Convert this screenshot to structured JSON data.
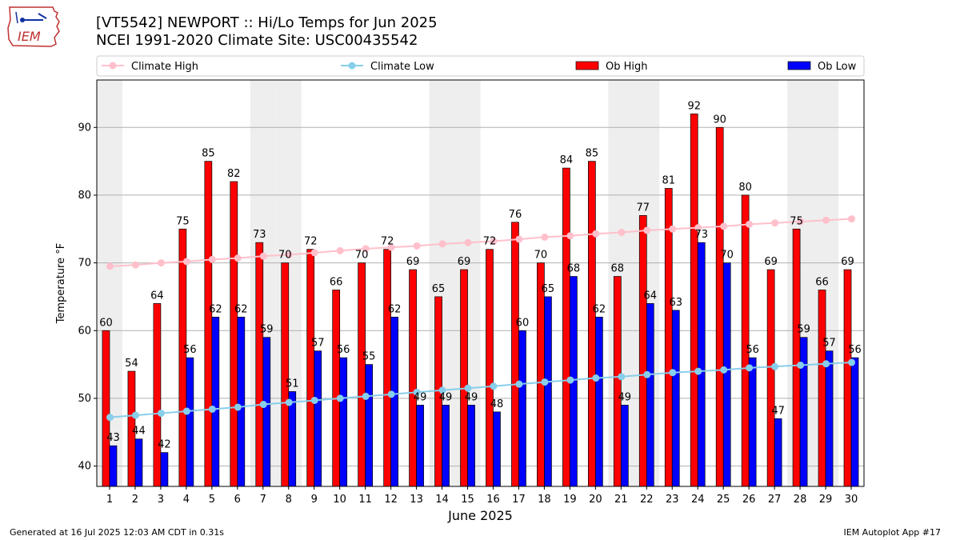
{
  "header": {
    "title_line1": "[VT5542] NEWPORT :: Hi/Lo Temps for Jun 2025",
    "title_line2": "NCEI 1991-2020 Climate Site: USC00435542",
    "logo_text": "IEM"
  },
  "footer": {
    "generated": "Generated at 16 Jul 2025 12:03 AM CDT in 0.31s",
    "app": "IEM Autoplot App #17"
  },
  "colors": {
    "ob_high": "#ff0000",
    "ob_low": "#0000ff",
    "climate_high": "#ffc0cb",
    "climate_low": "#87ceeb",
    "weekend_band": "#eeeeee"
  },
  "chart_data": {
    "type": "bar",
    "xlabel": "June 2025",
    "ylabel": "Temperature °F",
    "ylim": [
      37,
      97
    ],
    "yticks": [
      40,
      50,
      60,
      70,
      80,
      90
    ],
    "grid": "horizontal",
    "legend_position": "top",
    "categories": [
      "1",
      "2",
      "3",
      "4",
      "5",
      "6",
      "7",
      "8",
      "9",
      "10",
      "11",
      "12",
      "13",
      "14",
      "15",
      "16",
      "17",
      "18",
      "19",
      "20",
      "21",
      "22",
      "23",
      "24",
      "25",
      "26",
      "27",
      "28",
      "29",
      "30"
    ],
    "shaded_days": [
      1,
      7,
      8,
      14,
      15,
      21,
      22,
      28,
      29
    ],
    "series": [
      {
        "name": "Climate High",
        "kind": "line",
        "values": [
          69.5,
          69.7,
          70.0,
          70.2,
          70.5,
          70.7,
          71.0,
          71.2,
          71.5,
          71.8,
          72.1,
          72.3,
          72.5,
          72.8,
          73.0,
          73.2,
          73.5,
          73.8,
          74.0,
          74.3,
          74.5,
          74.8,
          75.0,
          75.2,
          75.4,
          75.7,
          75.9,
          76.1,
          76.3,
          76.5
        ]
      },
      {
        "name": "Climate Low",
        "kind": "line",
        "values": [
          47.2,
          47.5,
          47.8,
          48.1,
          48.4,
          48.7,
          49.1,
          49.4,
          49.7,
          50.0,
          50.3,
          50.6,
          50.9,
          51.2,
          51.5,
          51.8,
          52.1,
          52.4,
          52.7,
          53.0,
          53.2,
          53.5,
          53.8,
          54.0,
          54.2,
          54.5,
          54.7,
          54.9,
          55.1,
          55.3
        ]
      },
      {
        "name": "Ob High",
        "kind": "bar",
        "values": [
          60,
          54,
          64,
          75,
          85,
          82,
          73,
          70,
          72,
          66,
          70,
          72,
          69,
          65,
          69,
          72,
          76,
          70,
          84,
          85,
          68,
          77,
          81,
          92,
          90,
          80,
          69,
          75,
          66,
          69
        ]
      },
      {
        "name": "Ob Low",
        "kind": "bar",
        "values": [
          43,
          44,
          42,
          56,
          62,
          62,
          59,
          51,
          57,
          56,
          55,
          62,
          49,
          49,
          49,
          48,
          60,
          65,
          68,
          62,
          49,
          64,
          63,
          73,
          70,
          56,
          47,
          59,
          57,
          56
        ]
      }
    ]
  }
}
